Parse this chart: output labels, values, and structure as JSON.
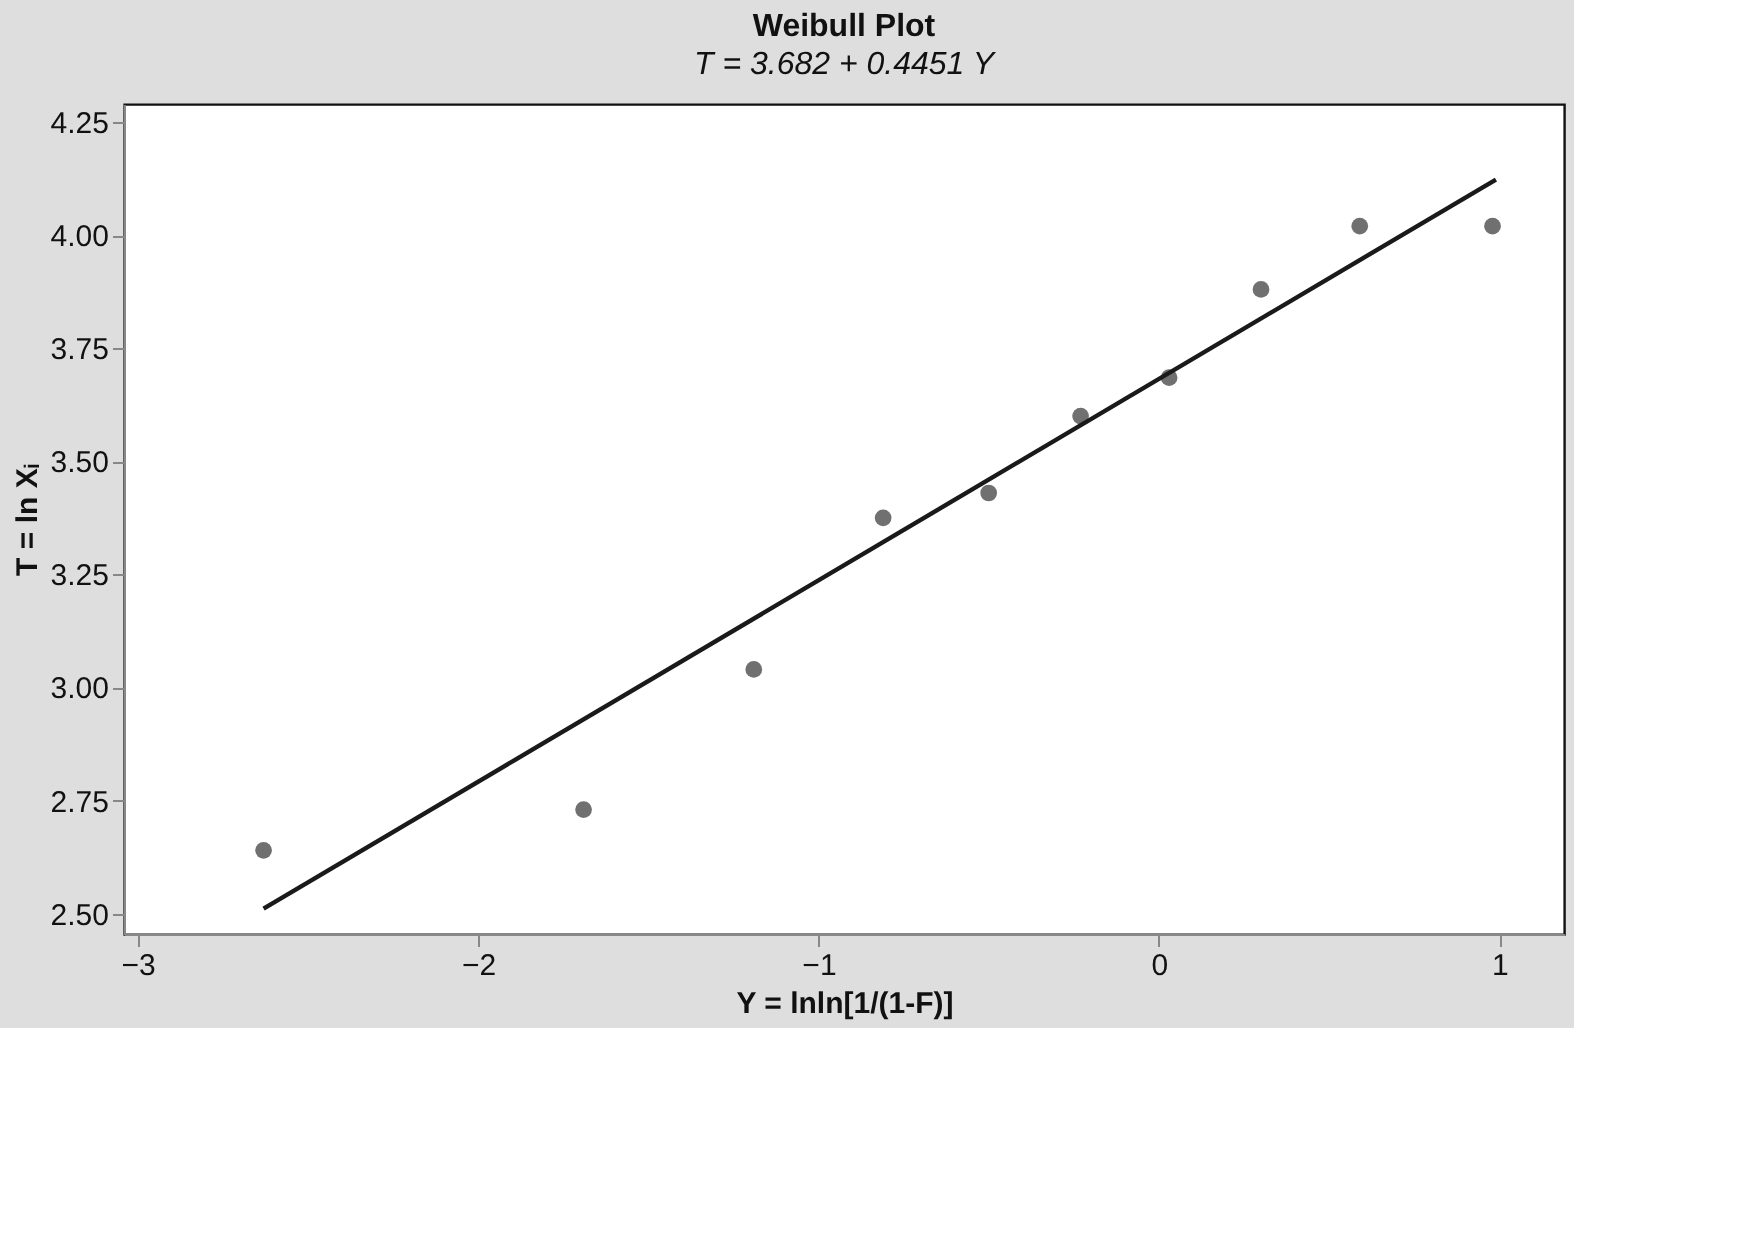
{
  "chart_data": {
    "type": "scatter",
    "title": "Weibull Plot",
    "subtitle": "T = 3.682 + 0.4451 Y",
    "xlabel": "Y = lnln[1/(1-F)]",
    "ylabel": "T = ln Xᵢ",
    "series": [
      {
        "color": "#707070",
        "marker": "circle",
        "x": [
          -2.63,
          -1.69,
          -1.19,
          -0.81,
          -0.5,
          -0.23,
          0.03,
          0.3,
          0.59,
          0.98
        ],
        "values": [
          2.64,
          2.73,
          3.04,
          3.375,
          3.43,
          3.6,
          3.685,
          3.88,
          4.02,
          4.02
        ]
      },
      {
        "type": "line",
        "color": "#1a1a1a",
        "line_style": "solid",
        "marker": "none",
        "x": [
          -2.63,
          0.99
        ],
        "values": [
          2.511,
          4.123
        ]
      }
    ],
    "xlim": [
      -3.04,
      1.19
    ],
    "ylim": [
      2.455,
      4.29
    ],
    "xticks": [
      {
        "value": -3,
        "label": "−3"
      },
      {
        "value": -2,
        "label": "−2"
      },
      {
        "value": -1,
        "label": "−1"
      },
      0,
      1
    ],
    "yticks": [
      {
        "value": 2.5,
        "label": "2.50"
      },
      {
        "value": 2.75,
        "label": "2.75"
      },
      {
        "value": 3,
        "label": "3.00"
      },
      {
        "value": 3.25,
        "label": "3.25"
      },
      {
        "value": 3.5,
        "label": "3.50"
      },
      {
        "value": 3.75,
        "label": "3.75"
      },
      {
        "value": 4,
        "label": "4.00"
      },
      {
        "value": 4.25,
        "label": "4.25"
      }
    ],
    "grid": false
  }
}
